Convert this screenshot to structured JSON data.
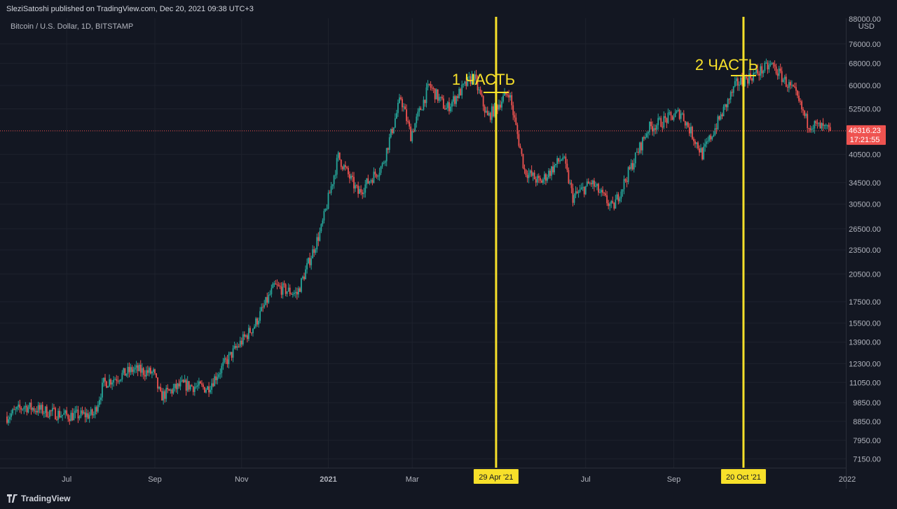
{
  "header": {
    "published_text": "SleziSatoshi published on TradingView.com, Dec 20, 2021 09:38 UTC+3"
  },
  "footer": {
    "brand": "TradingView"
  },
  "symbol": {
    "title": "Bitcoin / U.S. Dollar, 1D, BITSTAMP"
  },
  "price_axis": {
    "top_label": "88000.00",
    "currency": "USD",
    "labels": [
      "76000.00",
      "68000.00",
      "60000.00",
      "52500.00",
      "40500.00",
      "34500.00",
      "30500.00",
      "26500.00",
      "23500.00",
      "20500.00",
      "17500.00",
      "15500.00",
      "13900.00",
      "12300.00",
      "11050.00",
      "9850.00",
      "8850.00",
      "7950.00",
      "7150.00"
    ]
  },
  "current_price": {
    "value": "46316.23",
    "countdown": "17:21:55"
  },
  "time_axis": {
    "labels": [
      "Jul",
      "Sep",
      "Nov",
      "2021",
      "Mar",
      "Jul",
      "Sep",
      "2022"
    ],
    "markers": [
      "29 Apr '21",
      "20 Oct '21"
    ]
  },
  "annotations": [
    {
      "text": "1 ЧАСТЬ"
    },
    {
      "text": "2 ЧАСТЬ"
    }
  ],
  "colors": {
    "background": "#131722",
    "grid": "#1e222d",
    "up": "#26a69a",
    "down": "#ef5350",
    "marker": "#f7e02a",
    "text": "#d1d4dc",
    "axis_text": "#b2b5be"
  },
  "chart_data": {
    "type": "candlestick",
    "title": "Bitcoin / U.S. Dollar, 1D, BITSTAMP",
    "y_scale": "log",
    "ylim": [
      6800,
      88000
    ],
    "x_range": [
      "2020-05-20",
      "2021-12-31"
    ],
    "last_price": 46316.23,
    "close_trajectory": [
      [
        "2020-05-20",
        9100
      ],
      [
        "2020-06-01",
        9650
      ],
      [
        "2020-06-15",
        9400
      ],
      [
        "2020-07-01",
        9150
      ],
      [
        "2020-07-20",
        9200
      ],
      [
        "2020-07-27",
        11000
      ],
      [
        "2020-08-17",
        11900
      ],
      [
        "2020-08-31",
        11650
      ],
      [
        "2020-09-05",
        10200
      ],
      [
        "2020-09-20",
        10900
      ],
      [
        "2020-10-08",
        10700
      ],
      [
        "2020-10-25",
        13000
      ],
      [
        "2020-11-10",
        15300
      ],
      [
        "2020-11-24",
        19100
      ],
      [
        "2020-12-10",
        18300
      ],
      [
        "2020-12-27",
        26500
      ],
      [
        "2021-01-08",
        40000
      ],
      [
        "2021-01-22",
        32500
      ],
      [
        "2021-02-08",
        38000
      ],
      [
        "2021-02-21",
        56000
      ],
      [
        "2021-02-28",
        45200
      ],
      [
        "2021-03-13",
        60000
      ],
      [
        "2021-03-25",
        52500
      ],
      [
        "2021-04-13",
        63500
      ],
      [
        "2021-04-23",
        50000
      ],
      [
        "2021-05-08",
        58000
      ],
      [
        "2021-05-19",
        37000
      ],
      [
        "2021-05-30",
        34500
      ],
      [
        "2021-06-15",
        40000
      ],
      [
        "2021-06-22",
        31700
      ],
      [
        "2021-07-05",
        34500
      ],
      [
        "2021-07-20",
        29800
      ],
      [
        "2021-08-14",
        47000
      ],
      [
        "2021-09-06",
        51500
      ],
      [
        "2021-09-21",
        40500
      ],
      [
        "2021-10-15",
        60500
      ],
      [
        "2021-11-09",
        67500
      ],
      [
        "2021-11-25",
        57500
      ],
      [
        "2021-12-04",
        48500
      ],
      [
        "2021-12-20",
        46316
      ]
    ],
    "vertical_markers": [
      {
        "date": "2021-04-29",
        "label": "29 Apr '21"
      },
      {
        "date": "2021-10-20",
        "label": "20 Oct '21"
      }
    ],
    "text_annotations": [
      {
        "text": "1 ЧАСТЬ",
        "date": "2021-04-20"
      },
      {
        "text": "2 ЧАСТЬ",
        "date": "2021-10-18"
      }
    ]
  }
}
